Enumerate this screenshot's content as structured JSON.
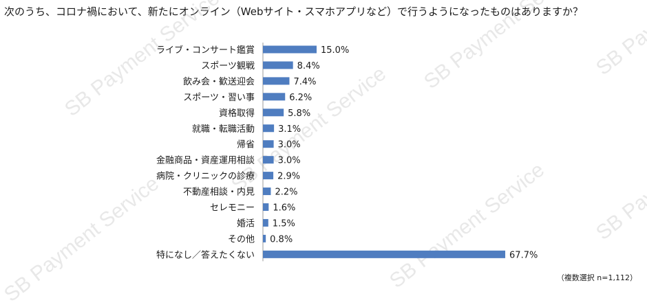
{
  "title": "次のうち、コロナ禍において、新たにオンライン（Webサイト・スマホアプリなど）で行うようになったものはありますか？",
  "watermark": "SB Payment Service",
  "note": "（複数選択 n=1,112）",
  "chart_data": {
    "type": "bar",
    "orientation": "horizontal",
    "value_suffix": "%",
    "bar_color": "#4f7dc0",
    "categories": [
      "ライブ・コンサート鑑賞",
      "スポーツ観戦",
      "飲み会・歓送迎会",
      "スポーツ・習い事",
      "資格取得",
      "就職・転職活動",
      "帰省",
      "金融商品・資産運用相談",
      "病院・クリニックの診療",
      "不動産相談・内見",
      "セレモニー",
      "婚活",
      "その他",
      "特になし／答えたくない"
    ],
    "values": [
      15.0,
      8.4,
      7.4,
      6.2,
      5.8,
      3.1,
      3.0,
      3.0,
      2.9,
      2.2,
      1.6,
      1.5,
      0.8,
      67.7
    ],
    "xlim": [
      0,
      70
    ],
    "grid": false,
    "legend": "none"
  }
}
